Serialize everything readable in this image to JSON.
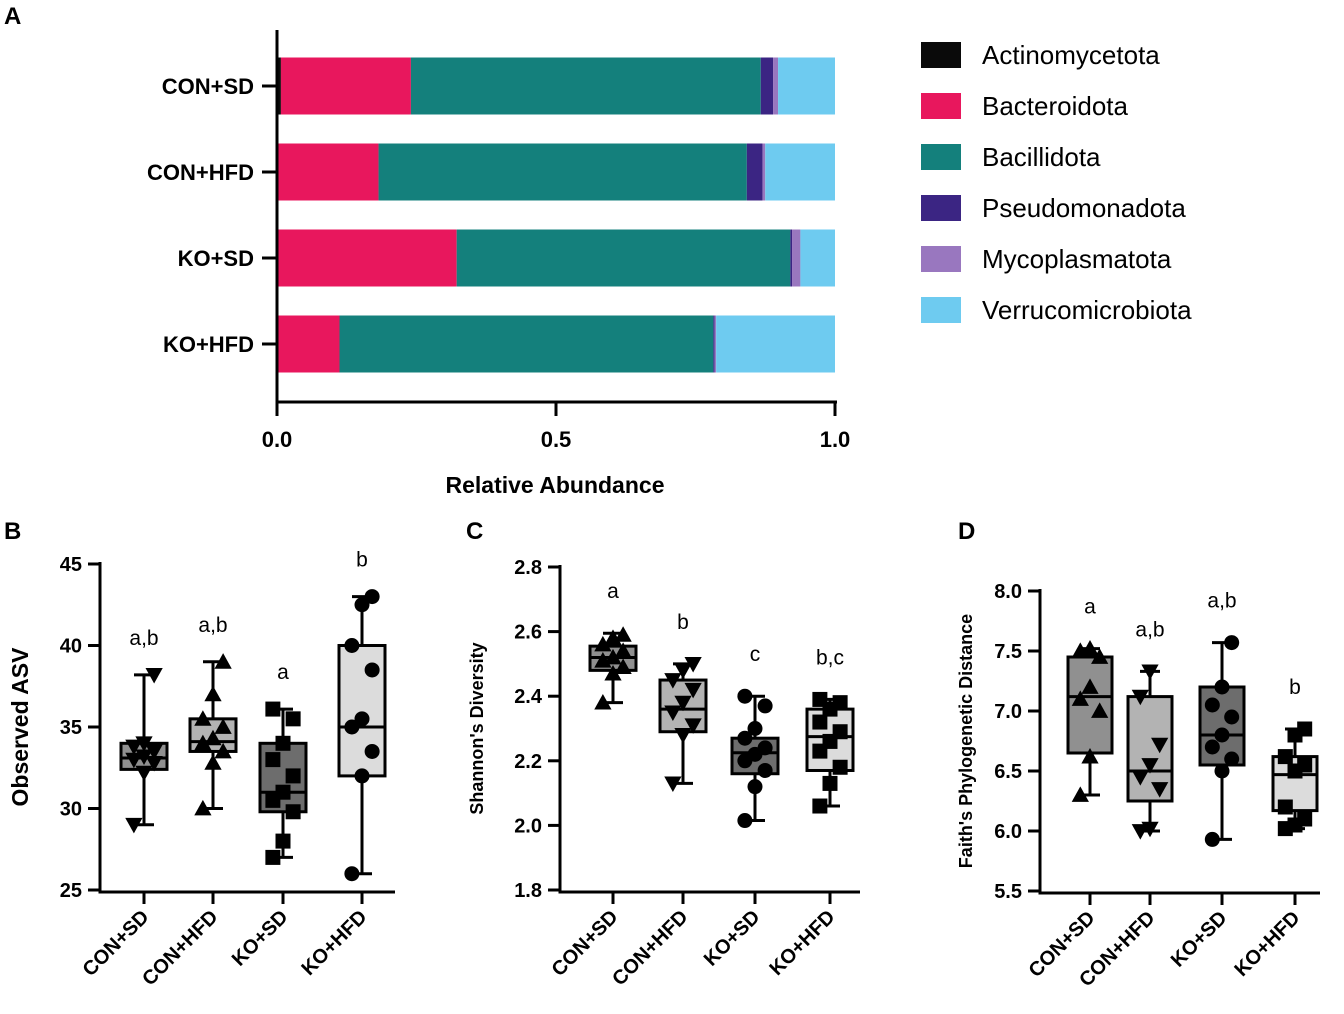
{
  "chart_data": [
    {
      "panel": "A",
      "type": "bar",
      "orientation": "horizontal",
      "stacked": true,
      "categories": [
        "CON+SD",
        "CON+HFD",
        "KO+SD",
        "KO+HFD"
      ],
      "series": [
        {
          "name": "Actinomycetota",
          "color": "#0a0a0a",
          "values": [
            0.007,
            0.002,
            0.002,
            0.002
          ]
        },
        {
          "name": "Bacteroidota",
          "color": "#e8175d",
          "values": [
            0.233,
            0.18,
            0.32,
            0.11
          ]
        },
        {
          "name": "Bacillidota",
          "color": "#14807c",
          "values": [
            0.627,
            0.66,
            0.598,
            0.67
          ]
        },
        {
          "name": "Pseudomonadota",
          "color": "#3b2583",
          "values": [
            0.022,
            0.028,
            0.003,
            0.002
          ]
        },
        {
          "name": "Mycoplasmatota",
          "color": "#9977bf",
          "values": [
            0.009,
            0.005,
            0.015,
            0.003
          ]
        },
        {
          "name": "Verrucomicrobiota",
          "color": "#6ecbf0",
          "values": [
            0.102,
            0.125,
            0.062,
            0.213
          ]
        }
      ],
      "xlabel": "Relative Abundance",
      "xlim": [
        0,
        1
      ],
      "xticks": [
        "0.0",
        "0.5",
        "1.0"
      ],
      "legend_position": "right"
    },
    {
      "panel": "B",
      "type": "box",
      "ylabel": "Observed ASV",
      "ylim": [
        25,
        45
      ],
      "yticks": [
        "25",
        "30",
        "35",
        "40",
        "45"
      ],
      "categories": [
        "CON+SD",
        "CON+HFD",
        "KO+SD",
        "KO+HFD"
      ],
      "groups": [
        {
          "name": "CON+SD",
          "min": 29,
          "q1": 32.4,
          "median": 33.1,
          "q3": 34,
          "max": 38.2,
          "fill": "#909090",
          "marker": "triangle-down",
          "label": "a,b",
          "points": [
            29,
            32.2,
            32.8,
            33,
            33.2,
            33.5,
            33.8,
            34,
            38.2
          ]
        },
        {
          "name": "CON+HFD",
          "min": 30,
          "q1": 33.5,
          "median": 34.1,
          "q3": 35.5,
          "max": 39,
          "fill": "#b3b3b3",
          "marker": "triangle-up",
          "label": "a,b",
          "points": [
            30,
            32.8,
            33.5,
            34,
            34.3,
            35,
            35.5,
            37,
            39
          ]
        },
        {
          "name": "KO+SD",
          "min": 27,
          "q1": 29.8,
          "median": 31,
          "q3": 34,
          "max": 36.1,
          "fill": "#6d6d6d",
          "marker": "square",
          "label": "a",
          "points": [
            27,
            28,
            29.8,
            30.5,
            31,
            32,
            33,
            34,
            35.5,
            36.1
          ]
        },
        {
          "name": "KO+HFD",
          "min": 26,
          "q1": 32,
          "median": 35,
          "q3": 40,
          "max": 43,
          "fill": "#dcdcdc",
          "marker": "circle",
          "label": "b",
          "points": [
            26,
            32,
            33.5,
            35,
            35.5,
            38.5,
            40,
            42.5,
            43
          ]
        }
      ]
    },
    {
      "panel": "C",
      "type": "box",
      "ylabel": "Shannon's Diversity",
      "ylim": [
        1.8,
        2.8
      ],
      "yticks": [
        "1.8",
        "2.0",
        "2.2",
        "2.4",
        "2.6",
        "2.8"
      ],
      "categories": [
        "CON+SD",
        "CON+HFD",
        "KO+SD",
        "KO+HFD"
      ],
      "groups": [
        {
          "name": "CON+SD",
          "min": 2.38,
          "q1": 2.48,
          "median": 2.52,
          "q3": 2.555,
          "max": 2.595,
          "fill": "#909090",
          "marker": "triangle-up",
          "label": "a",
          "points": [
            2.38,
            2.47,
            2.49,
            2.51,
            2.52,
            2.54,
            2.56,
            2.58,
            2.59
          ]
        },
        {
          "name": "CON+HFD",
          "min": 2.13,
          "q1": 2.29,
          "median": 2.36,
          "q3": 2.45,
          "max": 2.5,
          "fill": "#b3b3b3",
          "marker": "triangle-down",
          "label": "b",
          "points": [
            2.13,
            2.28,
            2.31,
            2.35,
            2.38,
            2.42,
            2.45,
            2.48,
            2.5
          ]
        },
        {
          "name": "KO+SD",
          "min": 2.015,
          "q1": 2.16,
          "median": 2.225,
          "q3": 2.27,
          "max": 2.4,
          "fill": "#6d6d6d",
          "marker": "circle",
          "label": "c",
          "points": [
            2.015,
            2.12,
            2.17,
            2.2,
            2.22,
            2.24,
            2.27,
            2.3,
            2.37,
            2.4
          ]
        },
        {
          "name": "KO+HFD",
          "min": 2.06,
          "q1": 2.17,
          "median": 2.275,
          "q3": 2.36,
          "max": 2.39,
          "fill": "#dcdcdc",
          "marker": "square",
          "label": "b,c",
          "points": [
            2.06,
            2.13,
            2.18,
            2.23,
            2.26,
            2.29,
            2.32,
            2.36,
            2.38,
            2.39
          ]
        }
      ]
    },
    {
      "panel": "D",
      "type": "box",
      "ylabel": "Faith's Phylogenetic Distance",
      "ylim": [
        5.5,
        8.0
      ],
      "yticks": [
        "5.5",
        "6.0",
        "6.5",
        "7.0",
        "7.5",
        "8.0"
      ],
      "categories": [
        "CON+SD",
        "CON+HFD",
        "KO+SD",
        "KO+HFD"
      ],
      "groups": [
        {
          "name": "CON+SD",
          "min": 6.3,
          "q1": 6.65,
          "median": 7.12,
          "q3": 7.45,
          "max": 7.52,
          "fill": "#909090",
          "marker": "triangle-up",
          "label": "a",
          "points": [
            6.3,
            6.62,
            7.0,
            7.1,
            7.2,
            7.45,
            7.5,
            7.52
          ]
        },
        {
          "name": "CON+HFD",
          "min": 6.0,
          "q1": 6.25,
          "median": 6.5,
          "q3": 7.12,
          "max": 7.33,
          "fill": "#b3b3b3",
          "marker": "triangle-down",
          "label": "a,b",
          "points": [
            6.0,
            6.02,
            6.35,
            6.45,
            6.55,
            6.72,
            7.12,
            7.33
          ]
        },
        {
          "name": "KO+SD",
          "min": 5.93,
          "q1": 6.55,
          "median": 6.8,
          "q3": 7.2,
          "max": 7.57,
          "fill": "#6d6d6d",
          "marker": "circle",
          "label": "a,b",
          "points": [
            5.93,
            6.5,
            6.6,
            6.7,
            6.8,
            6.95,
            7.05,
            7.2,
            7.57
          ]
        },
        {
          "name": "KO+HFD",
          "min": 6.02,
          "q1": 6.17,
          "median": 6.47,
          "q3": 6.62,
          "max": 6.85,
          "fill": "#dcdcdc",
          "marker": "square",
          "label": "b",
          "points": [
            6.02,
            6.05,
            6.1,
            6.2,
            6.5,
            6.55,
            6.62,
            6.8,
            6.85
          ]
        }
      ]
    }
  ]
}
